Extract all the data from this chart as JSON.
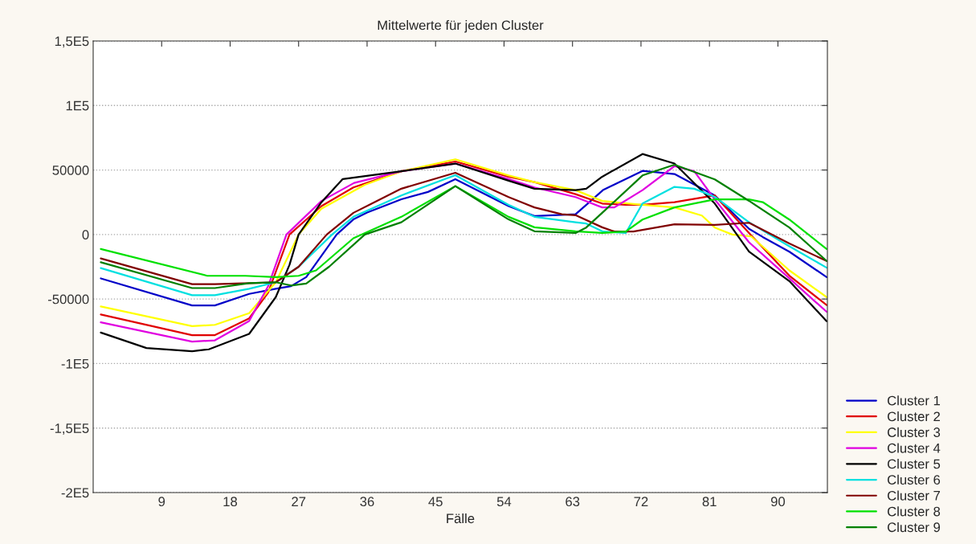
{
  "chart_data": {
    "type": "line",
    "title": "Mittelwerte für jeden Cluster",
    "xlabel": "Fälle",
    "xlim": [
      0,
      96.5
    ],
    "xticks": [
      9,
      18,
      27,
      36,
      45,
      54,
      63,
      72,
      81,
      90
    ],
    "ylim": [
      -200000,
      150000
    ],
    "yticks": [
      {
        "value": 150000,
        "label": "1,5E5"
      },
      {
        "value": 100000,
        "label": "1E5"
      },
      50000,
      0,
      -50000,
      {
        "value": -100000,
        "label": "-1E5"
      },
      {
        "value": -150000,
        "label": "-1,5E5"
      },
      {
        "value": -200000,
        "label": "-2E5"
      }
    ],
    "grid": "y",
    "legend": "bottom right",
    "marker": "none",
    "line_style": "solid",
    "series": [
      {
        "name": "Cluster 1",
        "color": "#0000c8",
        "x": [
          1,
          13,
          16,
          20.5,
          24,
          26,
          28,
          32,
          34.2,
          36,
          40.5,
          44,
          47.6,
          54.6,
          58,
          63.4,
          65,
          67,
          72.2,
          76.4,
          81.7,
          86.2,
          88,
          91.5,
          96.4
        ],
        "values": [
          -34000,
          -55000,
          -55000,
          -46000,
          -42000,
          -40000,
          -33000,
          0,
          11700,
          17000,
          27300,
          33000,
          42900,
          22000,
          14300,
          15700,
          24000,
          34400,
          49300,
          46900,
          30300,
          4400,
          -1900,
          -13300,
          -33000
        ]
      },
      {
        "name": "Cluster 2",
        "color": "#e00000",
        "x": [
          1,
          13,
          16,
          20.5,
          23,
          25.8,
          30,
          34.2,
          40.5,
          47.6,
          54.6,
          58,
          63.4,
          66.9,
          70,
          72.2,
          76.4,
          81.7,
          86.2,
          91.5,
          96.4
        ],
        "values": [
          -62000,
          -78000,
          -78000,
          -65000,
          -45000,
          0,
          22000,
          36500,
          49000,
          56600,
          44800,
          40600,
          31300,
          24000,
          23000,
          23000,
          25100,
          30300,
          1200,
          -31900,
          -54700
        ]
      },
      {
        "name": "Cluster 3",
        "color": "#ffff00",
        "x": [
          1,
          13,
          16,
          20.5,
          24,
          27,
          30,
          35.7,
          40.5,
          47.6,
          54.6,
          58,
          63.4,
          66.9,
          72.2,
          76.4,
          80,
          81.7,
          84,
          86.5,
          91.5,
          96.4
        ],
        "values": [
          -55800,
          -71000,
          -70000,
          -61000,
          -37000,
          0,
          20000,
          38500,
          49000,
          58300,
          45800,
          40600,
          34400,
          26000,
          23000,
          21000,
          14700,
          5400,
          0,
          -1500,
          -27800,
          -48500
        ]
      },
      {
        "name": "Cluster 4",
        "color": "#e000e0",
        "x": [
          1,
          13,
          16,
          20.5,
          23,
          25.4,
          30,
          34.3,
          40.5,
          47.6,
          54.6,
          58,
          63.4,
          66.9,
          68.5,
          72.2,
          76.4,
          79,
          81.7,
          86.2,
          91.5,
          96.4
        ],
        "values": [
          -68000,
          -83000,
          -82000,
          -67000,
          -40000,
          0,
          26000,
          40000,
          49000,
          55000,
          43000,
          36500,
          29000,
          21000,
          21000,
          34400,
          53000,
          49000,
          27200,
          -6000,
          -34000,
          -59900
        ]
      },
      {
        "name": "Cluster 5",
        "color": "#000000",
        "x": [
          1,
          7,
          13,
          15.2,
          20.5,
          24,
          25.8,
          27,
          30,
          32.8,
          40.5,
          47.6,
          54.6,
          58,
          63.4,
          64.8,
          66.9,
          72.2,
          76.4,
          81.7,
          86.2,
          91.5,
          96.4
        ],
        "values": [
          -76000,
          -88000,
          -90500,
          -89000,
          -77000,
          -48500,
          -23500,
          0,
          25000,
          43000,
          49000,
          55000,
          41700,
          35500,
          34400,
          35500,
          44800,
          62400,
          55000,
          24000,
          -13300,
          -36100,
          -67200
        ]
      },
      {
        "name": "Cluster 6",
        "color": "#00e0e0",
        "x": [
          1,
          13,
          16,
          20.5,
          24,
          27,
          31.4,
          34.2,
          40.5,
          47.6,
          54.6,
          58,
          63.4,
          64.8,
          67,
          70,
          72.2,
          76.4,
          79,
          81.7,
          86.2,
          91.5,
          96.4
        ],
        "values": [
          -26000,
          -47000,
          -47000,
          -42000,
          -37000,
          -25000,
          0,
          13700,
          30300,
          46000,
          23000,
          13700,
          9500,
          8500,
          2300,
          1200,
          24000,
          36900,
          35500,
          29200,
          9500,
          -9100,
          -25700
        ]
      },
      {
        "name": "Cluster 7",
        "color": "#800000",
        "x": [
          1,
          13,
          16,
          20.5,
          24,
          27,
          30.7,
          34.2,
          40.5,
          47.6,
          54.6,
          58,
          61.6,
          63.4,
          66.9,
          68.5,
          71,
          76.4,
          81.7,
          86.2,
          91.5,
          96.4
        ],
        "values": [
          -18500,
          -38500,
          -38500,
          -37700,
          -37000,
          -25000,
          0,
          16800,
          35500,
          47900,
          29000,
          21000,
          15700,
          15000,
          5600,
          2300,
          2300,
          7900,
          7500,
          9100,
          -7000,
          -20500
        ]
      },
      {
        "name": "Cluster 8",
        "color": "#00e000",
        "x": [
          1,
          15,
          20,
          24,
          27,
          29.3,
          34.2,
          40.5,
          47.6,
          54.6,
          58,
          63.4,
          66.9,
          70,
          72.2,
          76.4,
          81.7,
          86.2,
          88,
          91.5,
          96.4
        ],
        "values": [
          -11200,
          -32000,
          -32000,
          -33000,
          -32000,
          -27800,
          -2900,
          13700,
          37500,
          13700,
          5600,
          2500,
          1200,
          2300,
          11600,
          21000,
          27200,
          27200,
          25100,
          11600,
          -11200
        ]
      },
      {
        "name": "Cluster 9",
        "color": "#008000",
        "x": [
          1,
          13,
          16,
          20.5,
          24,
          26,
          28,
          31,
          35.7,
          40.5,
          47.6,
          54.6,
          58,
          63.4,
          64.8,
          66.9,
          72.2,
          76.4,
          81.7,
          86.2,
          91.5,
          96.4
        ],
        "values": [
          -21500,
          -41500,
          -41500,
          -37700,
          -37000,
          -39500,
          -38000,
          -25000,
          0,
          9500,
          37500,
          11700,
          2500,
          1200,
          5400,
          16800,
          45800,
          54100,
          42700,
          26100,
          5400,
          -20500
        ]
      }
    ]
  }
}
